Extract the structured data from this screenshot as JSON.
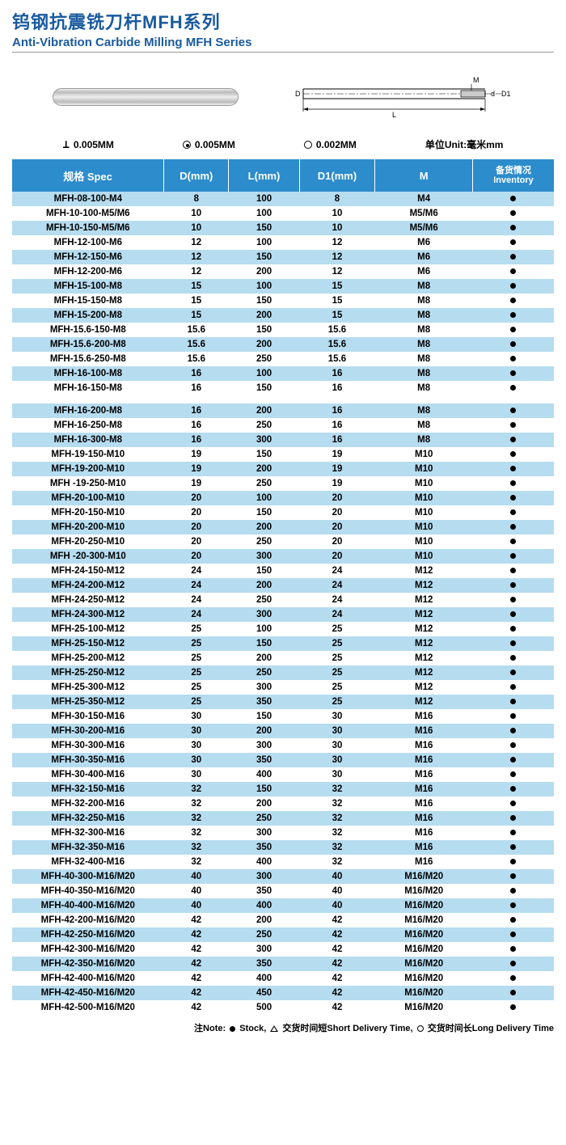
{
  "header": {
    "title_cn": "钨钢抗震铣刀杆MFH系列",
    "title_en": "Anti-Vibration Carbide Milling MFH Series"
  },
  "tolerance": {
    "t1_label": "0.005MM",
    "t2_label": "0.005MM",
    "t3_label": "0.002MM",
    "unit_label": "单位Unit:毫米mm"
  },
  "diagram_labels": {
    "D": "D",
    "L": "L",
    "M": "M",
    "d": "d",
    "D1": "D1"
  },
  "table": {
    "headers": {
      "spec": "规格  Spec",
      "D": "D(mm)",
      "L": "L(mm)",
      "D1": "D1(mm)",
      "M": "M",
      "inv_cn": "备货情况",
      "inv_en": "Inventory"
    },
    "col_widths": [
      "28%",
      "12%",
      "13%",
      "14%",
      "18%",
      "15%"
    ],
    "header_bg": "#2c8ccc",
    "row_colors": {
      "white": "#ffffff",
      "blue": "#b6dcf0"
    },
    "rows_group1": [
      {
        "spec": "MFH-08-100-M4",
        "D": "8",
        "L": "100",
        "D1": "8",
        "M": "M4",
        "inv": "dot",
        "bg": "blue"
      },
      {
        "spec": "MFH-10-100-M5/M6",
        "D": "10",
        "L": "100",
        "D1": "10",
        "M": "M5/M6",
        "inv": "dot",
        "bg": "white"
      },
      {
        "spec": "MFH-10-150-M5/M6",
        "D": "10",
        "L": "150",
        "D1": "10",
        "M": "M5/M6",
        "inv": "dot",
        "bg": "blue"
      },
      {
        "spec": "MFH-12-100-M6",
        "D": "12",
        "L": "100",
        "D1": "12",
        "M": "M6",
        "inv": "dot",
        "bg": "white"
      },
      {
        "spec": "MFH-12-150-M6",
        "D": "12",
        "L": "150",
        "D1": "12",
        "M": "M6",
        "inv": "dot",
        "bg": "blue"
      },
      {
        "spec": "MFH-12-200-M6",
        "D": "12",
        "L": "200",
        "D1": "12",
        "M": "M6",
        "inv": "dot",
        "bg": "white"
      },
      {
        "spec": "MFH-15-100-M8",
        "D": "15",
        "L": "100",
        "D1": "15",
        "M": "M8",
        "inv": "dot",
        "bg": "blue"
      },
      {
        "spec": "MFH-15-150-M8",
        "D": "15",
        "L": "150",
        "D1": "15",
        "M": "M8",
        "inv": "dot",
        "bg": "white"
      },
      {
        "spec": "MFH-15-200-M8",
        "D": "15",
        "L": "200",
        "D1": "15",
        "M": "M8",
        "inv": "dot",
        "bg": "blue"
      },
      {
        "spec": "MFH-15.6-150-M8",
        "D": "15.6",
        "L": "150",
        "D1": "15.6",
        "M": "M8",
        "inv": "dot",
        "bg": "white"
      },
      {
        "spec": "MFH-15.6-200-M8",
        "D": "15.6",
        "L": "200",
        "D1": "15.6",
        "M": "M8",
        "inv": "dot",
        "bg": "blue"
      },
      {
        "spec": "MFH-15.6-250-M8",
        "D": "15.6",
        "L": "250",
        "D1": "15.6",
        "M": "M8",
        "inv": "dot",
        "bg": "white"
      },
      {
        "spec": "MFH-16-100-M8",
        "D": "16",
        "L": "100",
        "D1": "16",
        "M": "M8",
        "inv": "dot",
        "bg": "blue"
      },
      {
        "spec": "MFH-16-150-M8",
        "D": "16",
        "L": "150",
        "D1": "16",
        "M": "M8",
        "inv": "dot",
        "bg": "white"
      }
    ],
    "rows_group2": [
      {
        "spec": "MFH-16-200-M8",
        "D": "16",
        "L": "200",
        "D1": "16",
        "M": "M8",
        "inv": "dot",
        "bg": "blue"
      },
      {
        "spec": "MFH-16-250-M8",
        "D": "16",
        "L": "250",
        "D1": "16",
        "M": "M8",
        "inv": "dot",
        "bg": "white"
      },
      {
        "spec": "MFH-16-300-M8",
        "D": "16",
        "L": "300",
        "D1": "16",
        "M": "M8",
        "inv": "dot",
        "bg": "blue"
      },
      {
        "spec": "MFH-19-150-M10",
        "D": "19",
        "L": "150",
        "D1": "19",
        "M": "M10",
        "inv": "dot",
        "bg": "white"
      },
      {
        "spec": "MFH-19-200-M10",
        "D": "19",
        "L": "200",
        "D1": "19",
        "M": "M10",
        "inv": "dot",
        "bg": "blue"
      },
      {
        "spec": "MFH -19-250-M10",
        "D": "19",
        "L": "250",
        "D1": "19",
        "M": "M10",
        "inv": "dot",
        "bg": "white"
      },
      {
        "spec": "MFH-20-100-M10",
        "D": "20",
        "L": "100",
        "D1": "20",
        "M": "M10",
        "inv": "dot",
        "bg": "blue"
      },
      {
        "spec": "MFH-20-150-M10",
        "D": "20",
        "L": "150",
        "D1": "20",
        "M": "M10",
        "inv": "dot",
        "bg": "white"
      },
      {
        "spec": "MFH-20-200-M10",
        "D": "20",
        "L": "200",
        "D1": "20",
        "M": "M10",
        "inv": "dot",
        "bg": "blue"
      },
      {
        "spec": "MFH-20-250-M10",
        "D": "20",
        "L": "250",
        "D1": "20",
        "M": "M10",
        "inv": "dot",
        "bg": "white"
      },
      {
        "spec": "MFH -20-300-M10",
        "D": "20",
        "L": "300",
        "D1": "20",
        "M": "M10",
        "inv": "dot",
        "bg": "blue"
      },
      {
        "spec": "MFH-24-150-M12",
        "D": "24",
        "L": "150",
        "D1": "24",
        "M": "M12",
        "inv": "dot",
        "bg": "white"
      },
      {
        "spec": "MFH-24-200-M12",
        "D": "24",
        "L": "200",
        "D1": "24",
        "M": "M12",
        "inv": "dot",
        "bg": "blue"
      },
      {
        "spec": "MFH-24-250-M12",
        "D": "24",
        "L": "250",
        "D1": "24",
        "M": "M12",
        "inv": "dot",
        "bg": "white"
      },
      {
        "spec": "MFH-24-300-M12",
        "D": "24",
        "L": "300",
        "D1": "24",
        "M": "M12",
        "inv": "dot",
        "bg": "blue"
      },
      {
        "spec": "MFH-25-100-M12",
        "D": "25",
        "L": "100",
        "D1": "25",
        "M": "M12",
        "inv": "dot",
        "bg": "white"
      },
      {
        "spec": "MFH-25-150-M12",
        "D": "25",
        "L": "150",
        "D1": "25",
        "M": "M12",
        "inv": "dot",
        "bg": "blue"
      },
      {
        "spec": "MFH-25-200-M12",
        "D": "25",
        "L": "200",
        "D1": "25",
        "M": "M12",
        "inv": "dot",
        "bg": "white"
      },
      {
        "spec": "MFH-25-250-M12",
        "D": "25",
        "L": "250",
        "D1": "25",
        "M": "M12",
        "inv": "dot",
        "bg": "blue"
      },
      {
        "spec": "MFH-25-300-M12",
        "D": "25",
        "L": "300",
        "D1": "25",
        "M": "M12",
        "inv": "dot",
        "bg": "white"
      },
      {
        "spec": "MFH-25-350-M12",
        "D": "25",
        "L": "350",
        "D1": "25",
        "M": "M12",
        "inv": "dot",
        "bg": "blue"
      },
      {
        "spec": "MFH-30-150-M16",
        "D": "30",
        "L": "150",
        "D1": "30",
        "M": "M16",
        "inv": "dot",
        "bg": "white"
      },
      {
        "spec": "MFH-30-200-M16",
        "D": "30",
        "L": "200",
        "D1": "30",
        "M": "M16",
        "inv": "dot",
        "bg": "blue"
      },
      {
        "spec": "MFH-30-300-M16",
        "D": "30",
        "L": "300",
        "D1": "30",
        "M": "M16",
        "inv": "dot",
        "bg": "white"
      },
      {
        "spec": "MFH-30-350-M16",
        "D": "30",
        "L": "350",
        "D1": "30",
        "M": "M16",
        "inv": "dot",
        "bg": "blue"
      },
      {
        "spec": "MFH-30-400-M16",
        "D": "30",
        "L": "400",
        "D1": "30",
        "M": "M16",
        "inv": "dot",
        "bg": "white"
      },
      {
        "spec": "MFH-32-150-M16",
        "D": "32",
        "L": "150",
        "D1": "32",
        "M": "M16",
        "inv": "dot",
        "bg": "blue"
      },
      {
        "spec": "MFH-32-200-M16",
        "D": "32",
        "L": "200",
        "D1": "32",
        "M": "M16",
        "inv": "dot",
        "bg": "white"
      },
      {
        "spec": "MFH-32-250-M16",
        "D": "32",
        "L": "250",
        "D1": "32",
        "M": "M16",
        "inv": "dot",
        "bg": "blue"
      },
      {
        "spec": "MFH-32-300-M16",
        "D": "32",
        "L": "300",
        "D1": "32",
        "M": "M16",
        "inv": "dot",
        "bg": "white"
      },
      {
        "spec": "MFH-32-350-M16",
        "D": "32",
        "L": "350",
        "D1": "32",
        "M": "M16",
        "inv": "dot",
        "bg": "blue"
      },
      {
        "spec": "MFH-32-400-M16",
        "D": "32",
        "L": "400",
        "D1": "32",
        "M": "M16",
        "inv": "dot",
        "bg": "white"
      },
      {
        "spec": "MFH-40-300-M16/M20",
        "D": "40",
        "L": "300",
        "D1": "40",
        "M": "M16/M20",
        "inv": "dot",
        "bg": "blue"
      },
      {
        "spec": "MFH-40-350-M16/M20",
        "D": "40",
        "L": "350",
        "D1": "40",
        "M": "M16/M20",
        "inv": "dot",
        "bg": "white"
      },
      {
        "spec": "MFH-40-400-M16/M20",
        "D": "40",
        "L": "400",
        "D1": "40",
        "M": "M16/M20",
        "inv": "dot",
        "bg": "blue"
      },
      {
        "spec": "MFH-42-200-M16/M20",
        "D": "42",
        "L": "200",
        "D1": "42",
        "M": "M16/M20",
        "inv": "dot",
        "bg": "white"
      },
      {
        "spec": "MFH-42-250-M16/M20",
        "D": "42",
        "L": "250",
        "D1": "42",
        "M": "M16/M20",
        "inv": "dot",
        "bg": "blue"
      },
      {
        "spec": "MFH-42-300-M16/M20",
        "D": "42",
        "L": "300",
        "D1": "42",
        "M": "M16/M20",
        "inv": "dot",
        "bg": "white"
      },
      {
        "spec": "MFH-42-350-M16/M20",
        "D": "42",
        "L": "350",
        "D1": "42",
        "M": "M16/M20",
        "inv": "dot",
        "bg": "blue"
      },
      {
        "spec": "MFH-42-400-M16/M20",
        "D": "42",
        "L": "400",
        "D1": "42",
        "M": "M16/M20",
        "inv": "dot",
        "bg": "white"
      },
      {
        "spec": "MFH-42-450-M16/M20",
        "D": "42",
        "L": "450",
        "D1": "42",
        "M": "M16/M20",
        "inv": "dot",
        "bg": "blue"
      },
      {
        "spec": "MFH-42-500-M16/M20",
        "D": "42",
        "L": "500",
        "D1": "42",
        "M": "M16/M20",
        "inv": "dot",
        "bg": "white"
      }
    ]
  },
  "note": {
    "prefix": "注Note:",
    "stock": "Stock,",
    "short": "交货时间短Short Delivery Time,",
    "long": "交货时间长Long Delivery Time"
  }
}
